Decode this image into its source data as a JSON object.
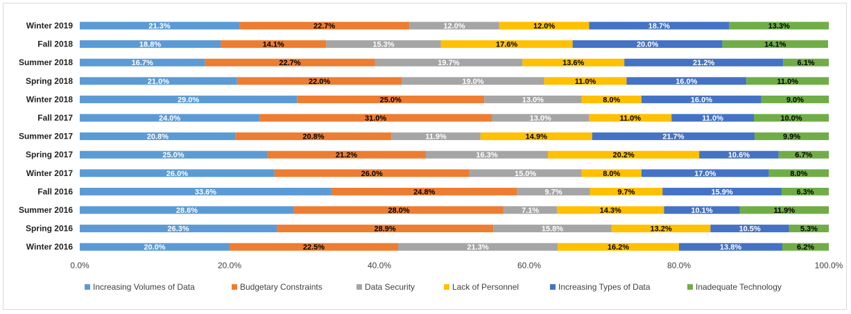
{
  "chart_data": {
    "type": "bar",
    "orientation": "horizontal",
    "stacked": "percent",
    "title": "",
    "xlabel": "",
    "ylabel": "",
    "xlim": [
      0,
      100
    ],
    "x_ticks": [
      "0.0%",
      "20.0%",
      "40.0%",
      "60.0%",
      "80.0%",
      "100.0%"
    ],
    "grid": false,
    "legend_position": "bottom",
    "categories": [
      "Winter 2019",
      "Fall 2018",
      "Summer 2018",
      "Spring 2018",
      "Winter 2018",
      "Fall 2017",
      "Summer 2017",
      "Spring 2017",
      "Winter 2017",
      "Fall 2016",
      "Summer 2016",
      "Spring 2016",
      "Winter 2016"
    ],
    "series": [
      {
        "name": "Increasing Volumes of Data",
        "color": "#5b9bd5",
        "label_color": "#ffffff",
        "values": [
          21.3,
          18.8,
          16.7,
          21.0,
          29.0,
          24.0,
          20.8,
          25.0,
          26.0,
          33.6,
          28.6,
          26.3,
          20.0
        ],
        "labels": [
          "21.3%",
          "18.8%",
          "16.7%",
          "21.0%",
          "29.0%",
          "24.0%",
          "20.8%",
          "25.0%",
          "26.0%",
          "33.6%",
          "28.6%",
          "26.3%",
          "20.0%"
        ]
      },
      {
        "name": "Budgetary Constraints",
        "color": "#ed7d31",
        "label_color": "#000000",
        "values": [
          22.7,
          14.1,
          22.7,
          22.0,
          25.0,
          31.0,
          20.8,
          21.2,
          26.0,
          24.8,
          28.0,
          28.9,
          22.5
        ],
        "labels": [
          "22.7%",
          "14.1%",
          "22.7%",
          "22.0%",
          "25.0%",
          "31.0%",
          "20.8%",
          "21.2%",
          "26.0%",
          "24.8%",
          "28.0%",
          "28.9%",
          "22.5%"
        ]
      },
      {
        "name": "Data Security",
        "color": "#a5a5a5",
        "label_color": "#ffffff",
        "values": [
          12.0,
          15.3,
          19.7,
          19.0,
          13.0,
          13.0,
          11.9,
          16.3,
          15.0,
          9.7,
          7.1,
          15.8,
          21.3
        ],
        "labels": [
          "12.0%",
          "15.3%",
          "19.7%",
          "19.0%",
          "13.0%",
          "13.0%",
          "11.9%",
          "16.3%",
          "15.0%",
          "9.7%",
          "7.1%",
          "15.8%",
          "21.3%"
        ]
      },
      {
        "name": "Lack of Personnel",
        "color": "#ffc000",
        "label_color": "#000000",
        "values": [
          12.0,
          17.6,
          13.6,
          11.0,
          8.0,
          11.0,
          14.9,
          20.2,
          8.0,
          9.7,
          14.3,
          13.2,
          16.2
        ],
        "labels": [
          "12.0%",
          "17.6%",
          "13.6%",
          "11.0%",
          "8.0%",
          "11.0%",
          "14.9%",
          "20.2%",
          "8.0%",
          "9.7%",
          "14.3%",
          "13.2%",
          "16.2%"
        ]
      },
      {
        "name": "Increasing Types of Data",
        "color": "#4472c4",
        "label_color": "#ffffff",
        "values": [
          18.7,
          20.0,
          21.2,
          16.0,
          16.0,
          11.0,
          21.7,
          10.6,
          17.0,
          15.9,
          10.1,
          10.5,
          13.8
        ],
        "labels": [
          "18.7%",
          "20.0%",
          "21.2%",
          "16.0%",
          "16.0%",
          "11.0%",
          "21.7%",
          "10.6%",
          "17.0%",
          "15.9%",
          "10.1%",
          "10.5%",
          "13.8%"
        ]
      },
      {
        "name": "Inadequate Technology",
        "color": "#70ad47",
        "label_color": "#000000",
        "values": [
          13.3,
          14.1,
          6.1,
          11.0,
          9.0,
          10.0,
          9.9,
          6.7,
          8.0,
          6.3,
          11.9,
          5.3,
          6.2
        ],
        "labels": [
          "13.3%",
          "14.1%",
          "6.1%",
          "11.0%",
          "9.0%",
          "10.0%",
          "9.9%",
          "6.7%",
          "8.0%",
          "6.3%",
          "11.9%",
          "5.3%",
          "6.2%"
        ]
      }
    ]
  }
}
